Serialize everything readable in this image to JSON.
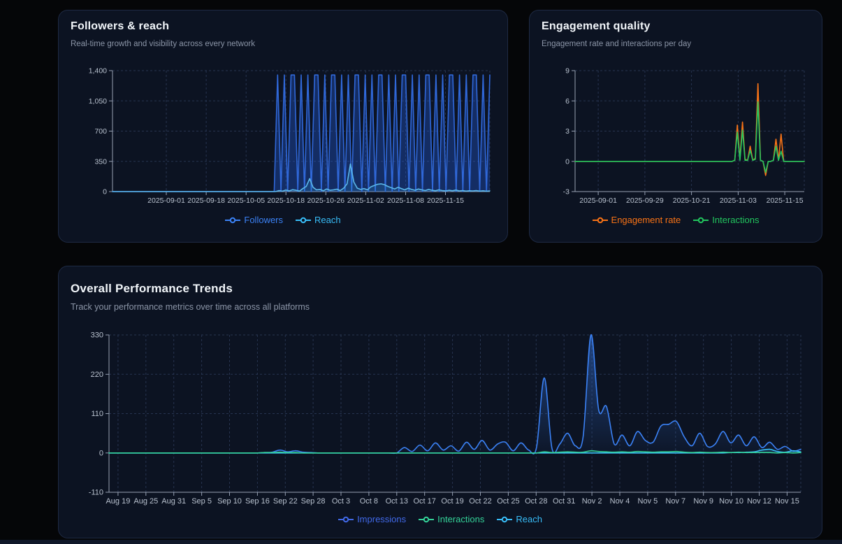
{
  "cards": [
    {
      "title": "Followers & reach",
      "subtitle": "Real-time growth and visibility across every network",
      "legend": [
        {
          "label": "Followers",
          "color": "#3b82f6"
        },
        {
          "label": "Reach",
          "color": "#38bdf8"
        }
      ]
    },
    {
      "title": "Engagement quality",
      "subtitle": "Engagement rate and interactions per day",
      "legend": [
        {
          "label": "Engagement rate",
          "color": "#f97316"
        },
        {
          "label": "Interactions",
          "color": "#22c55e"
        }
      ]
    },
    {
      "title": "Overall Performance Trends",
      "subtitle": "Track your performance metrics over time across all platforms",
      "legend": [
        {
          "label": "Impressions",
          "color": "#4169e8"
        },
        {
          "label": "Interactions",
          "color": "#34d399"
        },
        {
          "label": "Reach",
          "color": "#38bdf8"
        }
      ]
    }
  ],
  "chart_data": [
    {
      "type": "line",
      "title": "Followers & reach",
      "xlabel": "",
      "ylabel": "",
      "ylim": [
        0,
        1400
      ],
      "yticks": [
        [
          0,
          "0"
        ],
        [
          350,
          "350"
        ],
        [
          700,
          "700"
        ],
        [
          1050,
          "1,050"
        ],
        [
          1400,
          "1,400"
        ]
      ],
      "xticks": [
        "2025-09-01",
        "2025-09-18",
        "2025-10-05",
        "2025-10-18",
        "2025-10-26",
        "2025-11-02",
        "2025-11-08",
        "2025-11-15"
      ],
      "grid": "dashed",
      "legend_position": "bottom",
      "series": [
        {
          "name": "Followers",
          "color": "#3068d9",
          "fill": "#2563eb55",
          "values": [
            0,
            0,
            0,
            0,
            0,
            0,
            0,
            0,
            0,
            0,
            0,
            0,
            0,
            0,
            0,
            0,
            0,
            0,
            0,
            0,
            0,
            0,
            0,
            0,
            0,
            0,
            0,
            0,
            0,
            0,
            0,
            0,
            0,
            0,
            0,
            0,
            0,
            0,
            0,
            0,
            0,
            0,
            0,
            0,
            0,
            0,
            0,
            0,
            0,
            1350,
            0,
            1350,
            0,
            1350,
            1350,
            0,
            1350,
            0,
            1350,
            0,
            1350,
            1350,
            0,
            1350,
            0,
            1350,
            1350,
            0,
            1350,
            0,
            1350,
            0,
            1350,
            1350,
            0,
            1350,
            0,
            1350,
            0,
            1350,
            1350,
            0,
            1350,
            0,
            1350,
            0,
            1350,
            1350,
            0,
            1350,
            0,
            1350,
            0,
            1350,
            1350,
            0,
            1350,
            0,
            1350,
            0,
            1350,
            1350,
            0,
            1350,
            0,
            1350,
            0,
            1350,
            1350,
            0,
            1350,
            0,
            1350
          ]
        },
        {
          "name": "Reach",
          "color": "#5bb8ea",
          "fill": "#38bdf826",
          "values": [
            0,
            0,
            0,
            0,
            0,
            0,
            0,
            0,
            0,
            0,
            0,
            0,
            0,
            0,
            0,
            0,
            0,
            0,
            0,
            0,
            0,
            0,
            0,
            0,
            0,
            0,
            0,
            0,
            0,
            0,
            0,
            0,
            0,
            0,
            0,
            0,
            0,
            0,
            0,
            0,
            0,
            0,
            0,
            0,
            0,
            0,
            0,
            0,
            0,
            12,
            5,
            18,
            8,
            22,
            15,
            6,
            35,
            60,
            150,
            50,
            20,
            25,
            10,
            30,
            15,
            20,
            28,
            12,
            40,
            90,
            320,
            110,
            40,
            25,
            35,
            20,
            55,
            70,
            85,
            90,
            80,
            60,
            45,
            30,
            50,
            35,
            20,
            40,
            25,
            15,
            30,
            20,
            12,
            25,
            15,
            10,
            20,
            12,
            8,
            15,
            10,
            18,
            8,
            12,
            6,
            10,
            8,
            12,
            6,
            10,
            5,
            8
          ]
        }
      ]
    },
    {
      "type": "line",
      "title": "Engagement quality",
      "xlabel": "",
      "ylabel": "",
      "ylim": [
        -3,
        9
      ],
      "yticks": [
        [
          -3,
          "-3"
        ],
        [
          0,
          "0"
        ],
        [
          3,
          "3"
        ],
        [
          6,
          "6"
        ],
        [
          9,
          "9"
        ]
      ],
      "xticks": [
        "2025-09-01",
        "2025-09-29",
        "2025-10-21",
        "2025-11-03",
        "2025-11-15"
      ],
      "grid": "dashed",
      "legend_position": "bottom",
      "series": [
        {
          "name": "Engagement rate",
          "color": "#f97316",
          "values": [
            0,
            0,
            0,
            0,
            0,
            0,
            0,
            0,
            0,
            0,
            0,
            0,
            0,
            0,
            0,
            0,
            0,
            0,
            0,
            0,
            0,
            0,
            0,
            0,
            0,
            0,
            0,
            0,
            0,
            0,
            0,
            0,
            0,
            0,
            0,
            0,
            0,
            0,
            0,
            0,
            0,
            0,
            0,
            0,
            0,
            0,
            0,
            0,
            0,
            0,
            0,
            0,
            0,
            0,
            0,
            0,
            0,
            0,
            0,
            0,
            0,
            0,
            0.1,
            3.6,
            0.2,
            3.9,
            0.2,
            0.1,
            1.5,
            0.1,
            0.3,
            7.7,
            0.1,
            0,
            -1.4,
            0,
            0,
            0.1,
            2.2,
            0.1,
            2.7,
            0,
            0,
            0,
            0,
            0,
            0,
            0,
            0,
            0
          ]
        },
        {
          "name": "Interactions",
          "color": "#22c55e",
          "values": [
            0,
            0,
            0,
            0,
            0,
            0,
            0,
            0,
            0,
            0,
            0,
            0,
            0,
            0,
            0,
            0,
            0,
            0,
            0,
            0,
            0,
            0,
            0,
            0,
            0,
            0,
            0,
            0,
            0,
            0,
            0,
            0,
            0,
            0,
            0,
            0,
            0,
            0,
            0,
            0,
            0,
            0,
            0,
            0,
            0,
            0,
            0,
            0,
            0,
            0,
            0,
            0,
            0,
            0,
            0,
            0,
            0,
            0,
            0,
            0,
            0,
            0,
            0.1,
            2.9,
            0.1,
            3.1,
            0.1,
            0.1,
            1.1,
            0.1,
            0.2,
            5.9,
            0.1,
            0,
            -1.1,
            0,
            0,
            0.1,
            1.5,
            0.1,
            1.0,
            0,
            0,
            0,
            0,
            0,
            0,
            0,
            0,
            0
          ]
        }
      ]
    },
    {
      "type": "area",
      "title": "Overall Performance Trends",
      "xlabel": "",
      "ylabel": "",
      "ylim": [
        -110,
        330
      ],
      "yticks": [
        [
          -110,
          "-110"
        ],
        [
          0,
          "0"
        ],
        [
          110,
          "110"
        ],
        [
          220,
          "220"
        ],
        [
          330,
          "330"
        ]
      ],
      "xticks": [
        "Aug 19",
        "Aug 25",
        "Aug 31",
        "Sep 5",
        "Sep 10",
        "Sep 16",
        "Sep 22",
        "Sep 28",
        "Oct 3",
        "Oct 8",
        "Oct 13",
        "Oct 17",
        "Oct 19",
        "Oct 22",
        "Oct 25",
        "Oct 28",
        "Oct 31",
        "Nov 2",
        "Nov 4",
        "Nov 5",
        "Nov 7",
        "Nov 9",
        "Nov 10",
        "Nov 12",
        "Nov 15"
      ],
      "grid": "dashed",
      "legend_position": "bottom",
      "series": [
        {
          "name": "Impressions",
          "color": "#3b82f6",
          "gradient": true,
          "values": [
            0,
            0,
            0,
            0,
            0,
            0,
            0,
            0,
            0,
            0,
            0,
            0,
            0,
            0,
            0,
            0,
            0,
            0,
            0,
            0,
            1,
            2,
            8,
            3,
            6,
            2,
            1,
            0,
            0,
            0,
            0,
            0,
            0,
            0,
            0,
            0,
            0,
            0,
            15,
            4,
            22,
            6,
            28,
            8,
            20,
            5,
            30,
            10,
            35,
            8,
            25,
            30,
            6,
            28,
            8,
            15,
            210,
            12,
            25,
            55,
            20,
            45,
            330,
            120,
            130,
            25,
            50,
            20,
            60,
            35,
            30,
            75,
            80,
            88,
            45,
            20,
            55,
            18,
            25,
            60,
            28,
            50,
            20,
            45,
            15,
            30,
            10,
            18,
            5,
            10
          ]
        },
        {
          "name": "Reach",
          "color": "#38bdf8",
          "fill": "#38bdf824",
          "values": [
            0,
            0,
            0,
            0,
            0,
            0,
            0,
            0,
            0,
            0,
            0,
            0,
            0,
            0,
            0,
            0,
            0,
            0,
            0,
            0,
            0,
            0,
            0,
            0,
            0,
            0,
            0,
            0,
            0,
            0,
            0,
            0,
            0,
            0,
            0,
            0,
            0,
            0,
            0,
            0,
            0,
            0,
            0,
            0,
            0,
            0,
            0,
            0,
            0,
            0,
            0,
            0,
            0,
            0,
            0,
            0,
            0,
            0,
            0,
            0,
            0,
            0,
            0,
            0,
            0,
            0,
            0,
            0,
            0,
            0,
            0,
            0,
            0,
            0,
            0,
            0,
            0,
            0,
            0,
            0,
            1,
            1,
            2,
            3,
            8,
            10,
            4,
            2,
            6,
            3
          ]
        },
        {
          "name": "Interactions",
          "color": "#34d399",
          "fill": "#34d39914",
          "values": [
            0,
            0,
            0,
            0,
            0,
            0,
            0,
            0,
            0,
            0,
            0,
            0,
            0,
            0,
            0,
            0,
            0,
            0,
            0,
            0,
            1,
            1,
            2,
            1,
            1,
            0,
            0,
            0,
            0,
            0,
            0,
            0,
            0,
            0,
            0,
            0,
            0,
            0,
            0,
            0,
            0,
            0,
            0,
            0,
            0,
            0,
            0,
            0,
            0,
            0,
            0,
            0,
            0,
            0,
            0,
            0,
            3,
            1,
            2,
            3,
            2,
            2,
            6,
            4,
            3,
            2,
            3,
            2,
            4,
            3,
            2,
            3,
            3,
            4,
            2,
            1,
            2,
            1,
            1,
            2,
            1,
            2,
            1,
            1,
            1,
            1,
            0,
            1,
            0,
            1
          ]
        }
      ]
    }
  ]
}
